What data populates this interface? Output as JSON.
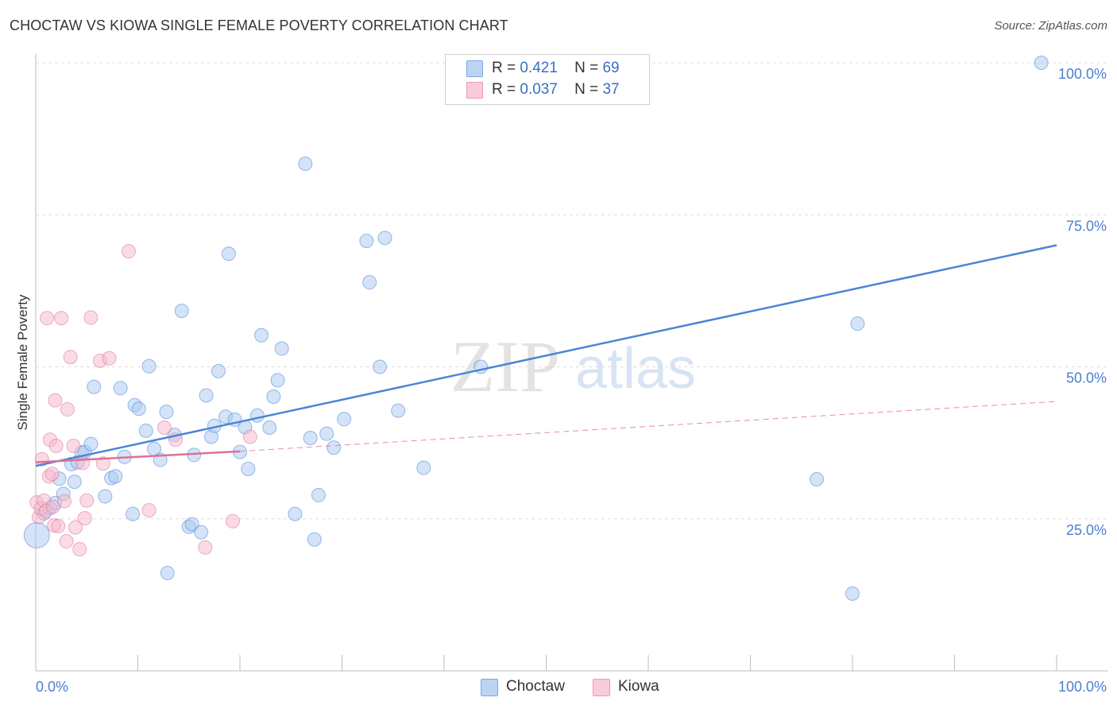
{
  "header": {
    "title": "CHOCTAW VS KIOWA SINGLE FEMALE POVERTY CORRELATION CHART",
    "source": "Source: ZipAtlas.com"
  },
  "watermark": {
    "zip": "ZIP",
    "atlas": "atlas"
  },
  "legend": {
    "rows": [
      {
        "r_label": "R =",
        "r_value": "0.421",
        "n_label": "N =",
        "n_value": "69",
        "color": "#a9c8f0"
      },
      {
        "r_label": "R =",
        "r_value": "0.037",
        "n_label": "N =",
        "n_value": "37",
        "color": "#f6b8cb"
      }
    ]
  },
  "bottom_legend": {
    "items": [
      {
        "label": "Choctaw",
        "color": "#a9c8f0"
      },
      {
        "label": "Kiowa",
        "color": "#f6b8cb"
      }
    ]
  },
  "chart_data": {
    "type": "scatter",
    "title": "CHOCTAW VS KIOWA SINGLE FEMALE POVERTY CORRELATION CHART",
    "xlabel": "",
    "ylabel": "Single Female Poverty",
    "xlim": [
      0,
      100
    ],
    "ylim": [
      0,
      100
    ],
    "x_tick_labels": [
      "0.0%",
      "100.0%"
    ],
    "y_tick_labels": [
      "25.0%",
      "50.0%",
      "75.0%",
      "100.0%"
    ],
    "y_ticks": [
      25,
      50,
      75,
      100
    ],
    "grid": true,
    "legend_position": "top-center",
    "series": [
      {
        "name": "Choctaw",
        "color": "#4a86d6",
        "fill": "#a9c8f0",
        "trendline": {
          "x": [
            0,
            100
          ],
          "y": [
            33.7,
            70.0
          ],
          "style": "solid"
        },
        "points": [
          [
            0.1,
            22.3
          ],
          [
            0.8,
            25.9
          ],
          [
            1.4,
            26.8
          ],
          [
            1.9,
            27.6
          ],
          [
            2.3,
            31.6
          ],
          [
            2.7,
            29.1
          ],
          [
            3.5,
            34.0
          ],
          [
            3.8,
            31.1
          ],
          [
            4.1,
            34.3
          ],
          [
            4.5,
            35.9
          ],
          [
            4.8,
            36.0
          ],
          [
            5.4,
            37.3
          ],
          [
            5.7,
            46.7
          ],
          [
            6.8,
            28.7
          ],
          [
            7.4,
            31.7
          ],
          [
            7.8,
            32.0
          ],
          [
            8.3,
            46.5
          ],
          [
            8.7,
            35.2
          ],
          [
            9.5,
            25.8
          ],
          [
            9.7,
            43.7
          ],
          [
            10.1,
            43.1
          ],
          [
            10.8,
            39.5
          ],
          [
            11.1,
            50.1
          ],
          [
            11.6,
            36.5
          ],
          [
            12.2,
            34.7
          ],
          [
            12.8,
            42.6
          ],
          [
            12.9,
            16.1
          ],
          [
            13.6,
            38.8
          ],
          [
            14.3,
            59.2
          ],
          [
            15.0,
            23.7
          ],
          [
            15.3,
            24.1
          ],
          [
            15.5,
            35.5
          ],
          [
            16.2,
            22.8
          ],
          [
            16.7,
            45.3
          ],
          [
            17.2,
            38.5
          ],
          [
            17.5,
            40.3
          ],
          [
            17.9,
            49.3
          ],
          [
            18.6,
            41.8
          ],
          [
            18.9,
            68.6
          ],
          [
            19.5,
            41.3
          ],
          [
            20.0,
            36.0
          ],
          [
            20.5,
            40.1
          ],
          [
            20.8,
            33.2
          ],
          [
            21.7,
            42.0
          ],
          [
            22.1,
            55.2
          ],
          [
            22.9,
            40.0
          ],
          [
            23.3,
            45.1
          ],
          [
            23.7,
            47.8
          ],
          [
            24.1,
            53.0
          ],
          [
            25.4,
            25.8
          ],
          [
            26.4,
            83.4
          ],
          [
            26.9,
            38.3
          ],
          [
            27.3,
            21.6
          ],
          [
            27.7,
            28.9
          ],
          [
            28.5,
            39.0
          ],
          [
            29.2,
            36.7
          ],
          [
            30.2,
            41.4
          ],
          [
            32.4,
            70.7
          ],
          [
            32.7,
            63.9
          ],
          [
            33.7,
            50.0
          ],
          [
            34.2,
            71.2
          ],
          [
            35.5,
            42.8
          ],
          [
            38.0,
            33.4
          ],
          [
            43.6,
            50.0
          ],
          [
            45.5,
            97.6
          ],
          [
            76.5,
            31.5
          ],
          [
            80.0,
            12.7
          ],
          [
            80.5,
            57.1
          ],
          [
            98.5,
            100.0
          ]
        ]
      },
      {
        "name": "Kiowa",
        "color": "#e06f98",
        "fill": "#f6b8cb",
        "trendline": {
          "x": [
            0,
            20
          ],
          "y": [
            34.3,
            36.1
          ],
          "style": "solid",
          "extended_to": [
            100,
            44.3
          ],
          "extended_style": "dashed"
        },
        "points": [
          [
            0.1,
            27.7
          ],
          [
            0.3,
            25.3
          ],
          [
            0.5,
            26.7
          ],
          [
            0.6,
            34.8
          ],
          [
            0.8,
            28.0
          ],
          [
            1.0,
            26.3
          ],
          [
            1.1,
            58.0
          ],
          [
            1.3,
            32.0
          ],
          [
            1.4,
            38.0
          ],
          [
            1.6,
            32.4
          ],
          [
            1.7,
            27.0
          ],
          [
            1.8,
            23.9
          ],
          [
            1.9,
            44.5
          ],
          [
            2.0,
            37.0
          ],
          [
            2.2,
            23.8
          ],
          [
            2.5,
            58.0
          ],
          [
            2.8,
            27.9
          ],
          [
            3.0,
            21.3
          ],
          [
            3.1,
            43.0
          ],
          [
            3.4,
            51.6
          ],
          [
            3.7,
            37.0
          ],
          [
            3.9,
            23.6
          ],
          [
            4.3,
            20.0
          ],
          [
            4.6,
            34.2
          ],
          [
            4.8,
            25.1
          ],
          [
            5.0,
            28.0
          ],
          [
            5.4,
            58.1
          ],
          [
            6.3,
            51.0
          ],
          [
            6.6,
            34.1
          ],
          [
            7.2,
            51.4
          ],
          [
            9.1,
            69.0
          ],
          [
            11.1,
            26.4
          ],
          [
            12.6,
            40.0
          ],
          [
            13.7,
            38.0
          ],
          [
            16.6,
            20.3
          ],
          [
            19.3,
            24.6
          ],
          [
            21.0,
            38.5
          ]
        ]
      }
    ]
  }
}
